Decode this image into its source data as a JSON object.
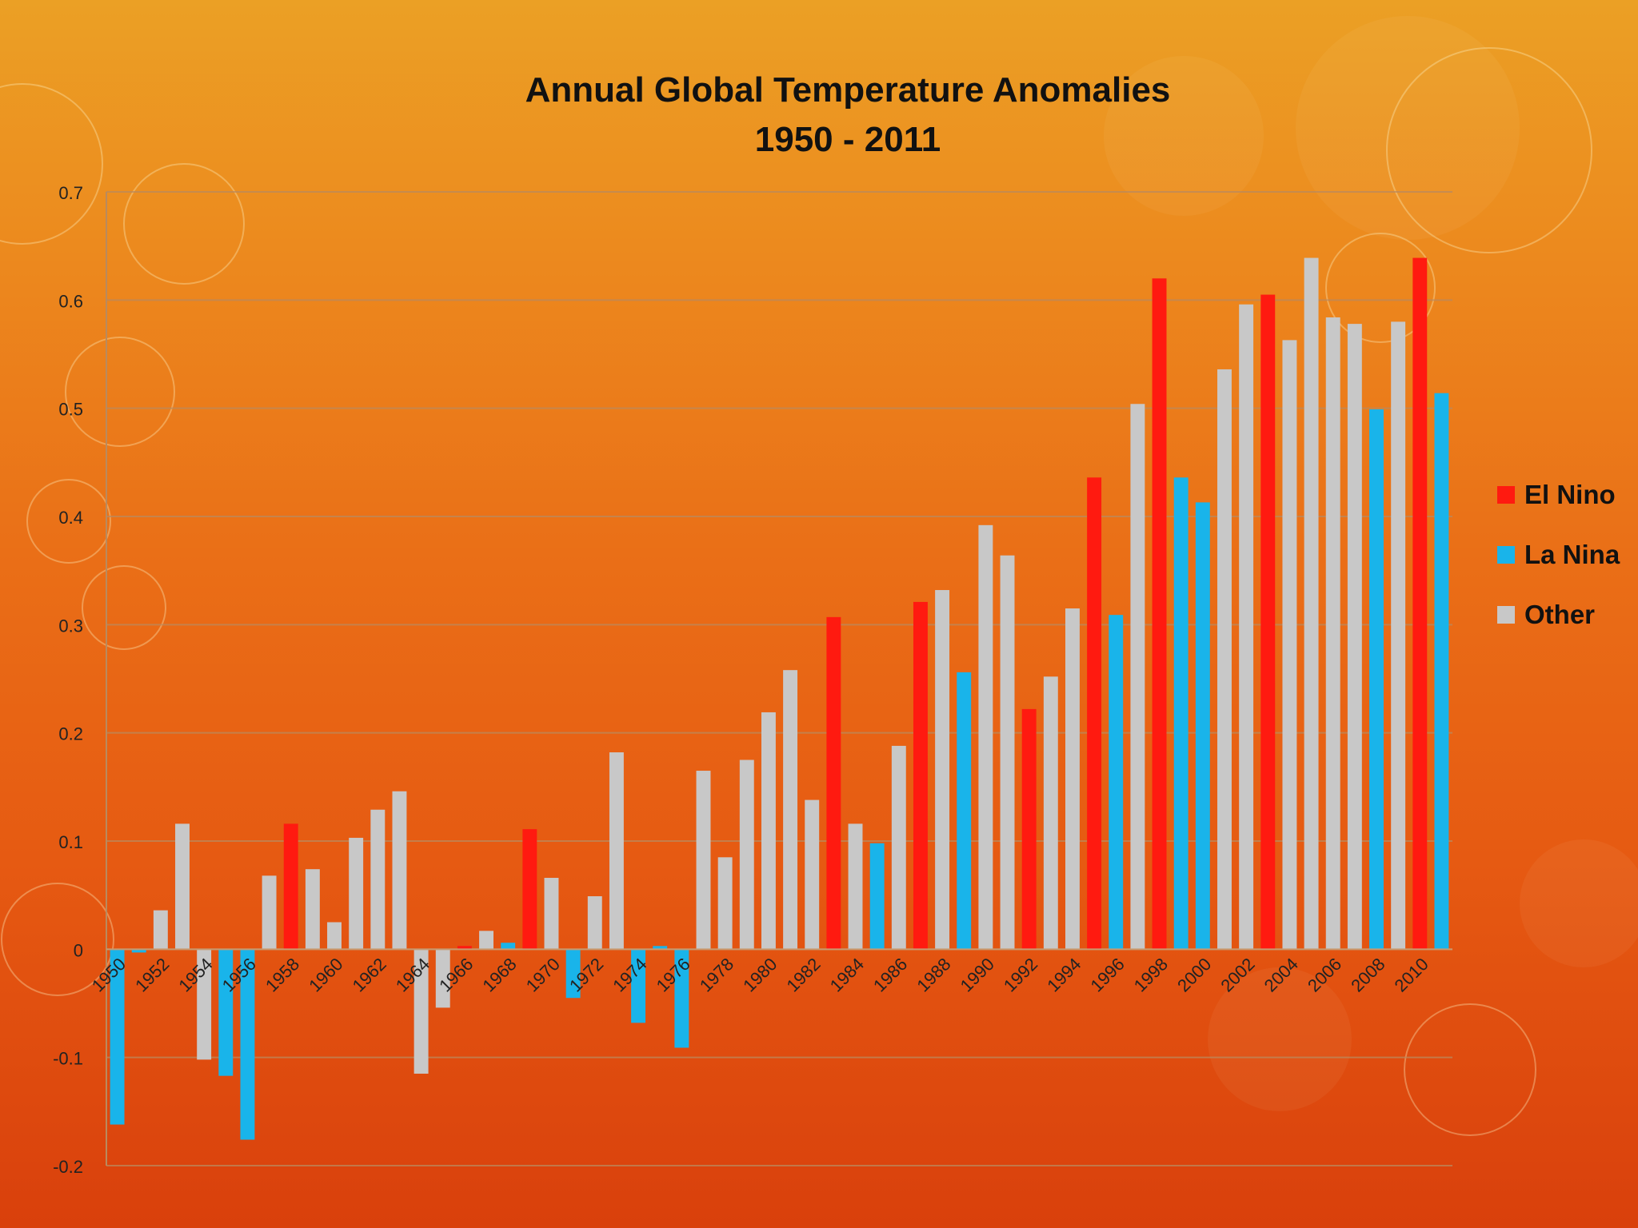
{
  "chart_data": {
    "type": "bar",
    "title": "Annual Global Temperature Anomalies",
    "subtitle": "1950 - 2011",
    "xlabel": "",
    "ylabel": "",
    "ylim": [
      -0.2,
      0.7
    ],
    "yticks": [
      0.7,
      0.6,
      0.5,
      0.4,
      0.3,
      0.2,
      0.1,
      0,
      -0.1,
      -0.2
    ],
    "ytick_labels": [
      "0.7",
      "0.6",
      "0.5",
      "0.4",
      "0.3",
      "0.2",
      "0.1",
      "0",
      "-0.1",
      "-0.2"
    ],
    "grid": true,
    "legend_position": "right",
    "series": [
      {
        "name": "El Nino",
        "color": "#ff1a10"
      },
      {
        "name": "La Nina",
        "color": "#19b4ea"
      },
      {
        "name": "Other",
        "color": "#c8c8c8"
      }
    ],
    "categories": [
      1950,
      1951,
      1952,
      1953,
      1954,
      1955,
      1956,
      1957,
      1958,
      1959,
      1960,
      1961,
      1962,
      1963,
      1964,
      1965,
      1966,
      1967,
      1968,
      1969,
      1970,
      1971,
      1972,
      1973,
      1974,
      1975,
      1976,
      1977,
      1978,
      1979,
      1980,
      1981,
      1982,
      1983,
      1984,
      1985,
      1986,
      1987,
      1988,
      1989,
      1990,
      1991,
      1992,
      1993,
      1994,
      1995,
      1996,
      1997,
      1998,
      1999,
      2000,
      2001,
      2002,
      2003,
      2004,
      2005,
      2006,
      2007,
      2008,
      2009,
      2010,
      2011
    ],
    "x_tick_labels": [
      "1950",
      "1952",
      "1954",
      "1956",
      "1958",
      "1960",
      "1962",
      "1964",
      "1966",
      "1968",
      "1970",
      "1972",
      "1974",
      "1976",
      "1978",
      "1980",
      "1982",
      "1984",
      "1986",
      "1988",
      "1990",
      "1992",
      "1994",
      "1996",
      "1998",
      "2000",
      "2002",
      "2004",
      "2006",
      "2008",
      "2010"
    ],
    "values": [
      -0.162,
      -0.003,
      0.036,
      0.116,
      -0.102,
      -0.117,
      -0.176,
      0.068,
      0.116,
      0.074,
      0.025,
      0.103,
      0.129,
      0.146,
      -0.115,
      -0.054,
      0.003,
      0.017,
      0.006,
      0.111,
      0.066,
      -0.045,
      0.049,
      0.182,
      -0.068,
      0.003,
      -0.091,
      0.165,
      0.085,
      0.175,
      0.219,
      0.258,
      0.138,
      0.307,
      0.116,
      0.098,
      0.188,
      0.321,
      0.332,
      0.256,
      0.392,
      0.364,
      0.222,
      0.252,
      0.315,
      0.436,
      0.309,
      0.504,
      0.62,
      0.436,
      0.413,
      0.536,
      0.596,
      0.605,
      0.563,
      0.639,
      0.584,
      0.578,
      0.499,
      0.58,
      0.639,
      0.514
    ],
    "classification": [
      "La Nina",
      "La Nina",
      "Other",
      "Other",
      "Other",
      "La Nina",
      "La Nina",
      "Other",
      "El Nino",
      "Other",
      "Other",
      "Other",
      "Other",
      "Other",
      "Other",
      "Other",
      "El Nino",
      "Other",
      "La Nina",
      "El Nino",
      "Other",
      "La Nina",
      "Other",
      "Other",
      "La Nina",
      "La Nina",
      "La Nina",
      "Other",
      "Other",
      "Other",
      "Other",
      "Other",
      "Other",
      "El Nino",
      "Other",
      "La Nina",
      "Other",
      "El Nino",
      "Other",
      "La Nina",
      "Other",
      "Other",
      "El Nino",
      "Other",
      "Other",
      "El Nino",
      "La Nina",
      "Other",
      "El Nino",
      "La Nina",
      "La Nina",
      "Other",
      "Other",
      "El Nino",
      "Other",
      "Other",
      "Other",
      "Other",
      "La Nina",
      "Other",
      "El Nino",
      "La Nina"
    ]
  }
}
